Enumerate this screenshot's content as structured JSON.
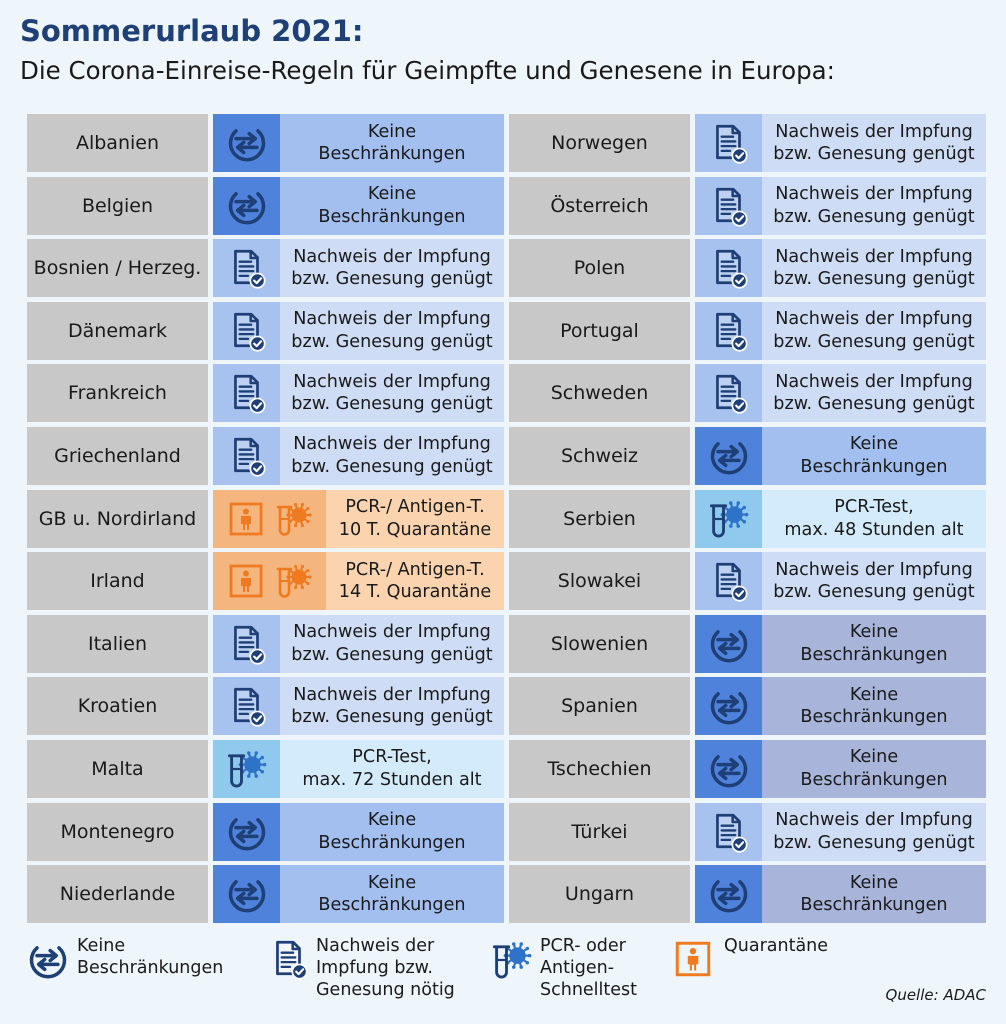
{
  "header": {
    "title": "Sommerurlaub 2021:",
    "subtitle": "Die Corona-Einreise-Regeln für Geimpfte und Genesene in Europa:"
  },
  "left_rows": [
    {
      "country": "Albanien",
      "type": "none",
      "icon": "arrows-exchange-icon",
      "text": "Keine\nBeschränkungen"
    },
    {
      "country": "Belgien",
      "type": "none",
      "icon": "arrows-exchange-icon",
      "text": "Keine\nBeschränkungen"
    },
    {
      "country": "Bosnien / Herzeg.",
      "type": "proof",
      "icon": "document-check-icon",
      "text": "Nachweis der Impfung\nbzw. Genesung genügt"
    },
    {
      "country": "Dänemark",
      "type": "proof",
      "icon": "document-check-icon",
      "text": "Nachweis der Impfung\nbzw. Genesung genügt"
    },
    {
      "country": "Frankreich",
      "type": "proof",
      "icon": "document-check-icon",
      "text": "Nachweis der Impfung\nbzw. Genesung genügt"
    },
    {
      "country": "Griechenland",
      "type": "proof",
      "icon": "document-check-icon",
      "text": "Nachweis der Impfung\nbzw. Genesung genügt"
    },
    {
      "country": "GB u. Nordirland",
      "type": "quar",
      "icon": "quarantine-test-icon",
      "text": "PCR-/ Antigen-T.\n10 T. Quarantäne"
    },
    {
      "country": "Irland",
      "type": "quar",
      "icon": "quarantine-test-icon",
      "text": "PCR-/ Antigen-T.\n14 T. Quarantäne"
    },
    {
      "country": "Italien",
      "type": "proof",
      "icon": "document-check-icon",
      "text": "Nachweis der Impfung\nbzw. Genesung genügt"
    },
    {
      "country": "Kroatien",
      "type": "proof",
      "icon": "document-check-icon",
      "text": "Nachweis der Impfung\nbzw. Genesung genügt"
    },
    {
      "country": "Malta",
      "type": "pcr",
      "icon": "test-tube-virus-icon",
      "text": "PCR-Test,\nmax. 72 Stunden alt"
    },
    {
      "country": "Montenegro",
      "type": "none",
      "icon": "arrows-exchange-icon",
      "text": "Keine\nBeschränkungen"
    },
    {
      "country": "Niederlande",
      "type": "none",
      "icon": "arrows-exchange-icon",
      "text": "Keine\nBeschränkungen"
    }
  ],
  "right_rows": [
    {
      "country": "Norwegen",
      "type": "proof",
      "icon": "document-check-icon",
      "text": "Nachweis der Impfung\nbzw. Genesung genügt"
    },
    {
      "country": "Österreich",
      "type": "proof",
      "icon": "document-check-icon",
      "text": "Nachweis der Impfung\nbzw. Genesung genügt"
    },
    {
      "country": "Polen",
      "type": "proof",
      "icon": "document-check-icon",
      "text": "Nachweis der Impfung\nbzw. Genesung genügt"
    },
    {
      "country": "Portugal",
      "type": "proof",
      "icon": "document-check-icon",
      "text": "Nachweis der Impfung\nbzw. Genesung genügt"
    },
    {
      "country": "Schweden",
      "type": "proof",
      "icon": "document-check-icon",
      "text": "Nachweis der Impfung\nbzw. Genesung genügt"
    },
    {
      "country": "Schweiz",
      "type": "none",
      "icon": "arrows-exchange-icon",
      "text": "Keine\nBeschränkungen"
    },
    {
      "country": "Serbien",
      "type": "pcr",
      "icon": "test-tube-virus-icon",
      "text": "PCR-Test,\nmax. 48 Stunden alt"
    },
    {
      "country": "Slowakei",
      "type": "proof",
      "icon": "document-check-icon",
      "text": "Nachweis der Impfung\nbzw. Genesung genügt"
    },
    {
      "country": "Slowenien",
      "type": "none2",
      "icon": "arrows-exchange-icon",
      "text": "Keine\nBeschränkungen"
    },
    {
      "country": "Spanien",
      "type": "none2",
      "icon": "arrows-exchange-icon",
      "text": "Keine\nBeschränkungen"
    },
    {
      "country": "Tschechien",
      "type": "none2",
      "icon": "arrows-exchange-icon",
      "text": "Keine\nBeschränkungen"
    },
    {
      "country": "Türkei",
      "type": "proof",
      "icon": "document-check-icon",
      "text": "Nachweis der Impfung\nbzw. Genesung genügt"
    },
    {
      "country": "Ungarn",
      "type": "none2",
      "icon": "arrows-exchange-icon",
      "text": "Keine\nBeschränkungen"
    }
  ],
  "legend": [
    {
      "icon": "arrows-exchange-icon",
      "text": "Keine\nBeschränkungen"
    },
    {
      "icon": "document-check-icon",
      "text": "Nachweis der\nImpfung bzw.\nGenesung nötig"
    },
    {
      "icon": "test-tube-virus-icon",
      "text": "PCR- oder\nAntigen-\nSchnelltest"
    },
    {
      "icon": "quarantine-icon",
      "text": "Quarantäne"
    }
  ],
  "source": "Quelle: ADAC",
  "colors": {
    "title": "#1f3f77",
    "no_restriction_icon_bg": "#4f82db",
    "no_restriction_text_bg": "#a3bff0",
    "proof_icon_bg": "#a7c2ee",
    "proof_text_bg": "#cfdcf6",
    "quarantine_icon_bg": "#f5b57f",
    "quarantine_text_bg": "#fbd3ae",
    "pcr_icon_bg": "#8fc9ee",
    "pcr_text_bg": "#d3ebfa",
    "country_bg": "#c8c8c8",
    "icon_navy": "#1f3f77",
    "icon_orange": "#f07a1f"
  }
}
